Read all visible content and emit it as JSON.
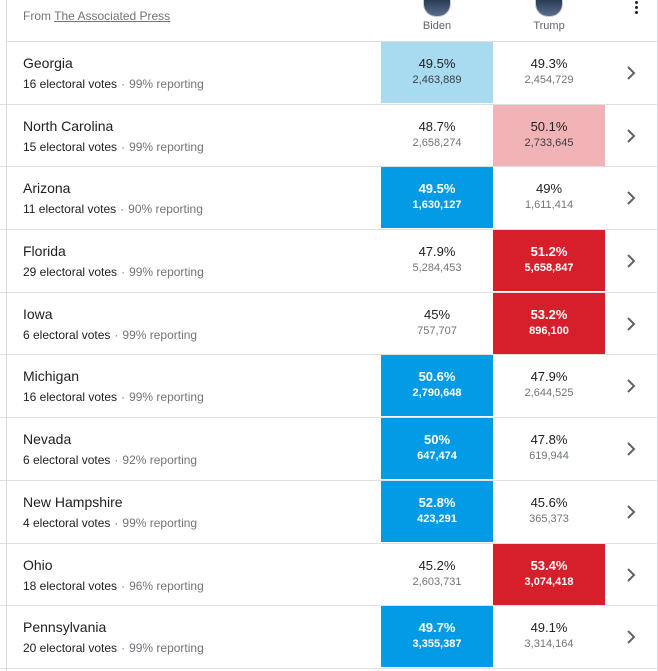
{
  "header": {
    "source_prefix": "From",
    "source_link": "The Associated Press",
    "candidates": [
      {
        "name": "Biden",
        "avatar": "biden-avatar"
      },
      {
        "name": "Trump",
        "avatar": "trump-avatar"
      }
    ],
    "menu_icon": "more-vert-icon"
  },
  "colors": {
    "biden_win": "#039be5",
    "biden_lead": "#a8daf0",
    "trump_win": "#d61f2a",
    "trump_lead": "#f2b3b7"
  },
  "rows": [
    {
      "state": "Georgia",
      "ev": "16 electoral votes",
      "reporting": "99% reporting",
      "biden_pct": "49.5%",
      "biden_votes": "2,463,889",
      "trump_pct": "49.3%",
      "trump_votes": "2,454,729",
      "fill": "biden-lead"
    },
    {
      "state": "North Carolina",
      "ev": "15 electoral votes",
      "reporting": "99% reporting",
      "biden_pct": "48.7%",
      "biden_votes": "2,658,274",
      "trump_pct": "50.1%",
      "trump_votes": "2,733,645",
      "fill": "trump-lead"
    },
    {
      "state": "Arizona",
      "ev": "11 electoral votes",
      "reporting": "90% reporting",
      "biden_pct": "49.5%",
      "biden_votes": "1,630,127",
      "trump_pct": "49%",
      "trump_votes": "1,611,414",
      "fill": "biden-win"
    },
    {
      "state": "Florida",
      "ev": "29 electoral votes",
      "reporting": "99% reporting",
      "biden_pct": "47.9%",
      "biden_votes": "5,284,453",
      "trump_pct": "51.2%",
      "trump_votes": "5,658,847",
      "fill": "trump-win"
    },
    {
      "state": "Iowa",
      "ev": "6 electoral votes",
      "reporting": "99% reporting",
      "biden_pct": "45%",
      "biden_votes": "757,707",
      "trump_pct": "53.2%",
      "trump_votes": "896,100",
      "fill": "trump-win"
    },
    {
      "state": "Michigan",
      "ev": "16 electoral votes",
      "reporting": "99% reporting",
      "biden_pct": "50.6%",
      "biden_votes": "2,790,648",
      "trump_pct": "47.9%",
      "trump_votes": "2,644,525",
      "fill": "biden-win"
    },
    {
      "state": "Nevada",
      "ev": "6 electoral votes",
      "reporting": "92% reporting",
      "biden_pct": "50%",
      "biden_votes": "647,474",
      "trump_pct": "47.8%",
      "trump_votes": "619,944",
      "fill": "biden-win"
    },
    {
      "state": "New Hampshire",
      "ev": "4 electoral votes",
      "reporting": "99% reporting",
      "biden_pct": "52.8%",
      "biden_votes": "423,291",
      "trump_pct": "45.6%",
      "trump_votes": "365,373",
      "fill": "biden-win"
    },
    {
      "state": "Ohio",
      "ev": "18 electoral votes",
      "reporting": "96% reporting",
      "biden_pct": "45.2%",
      "biden_votes": "2,603,731",
      "trump_pct": "53.4%",
      "trump_votes": "3,074,418",
      "fill": "trump-win"
    },
    {
      "state": "Pennsylvania",
      "ev": "20 electoral votes",
      "reporting": "99% reporting",
      "biden_pct": "49.7%",
      "biden_votes": "3,355,387",
      "trump_pct": "49.1%",
      "trump_votes": "3,314,164",
      "fill": "biden-win"
    }
  ]
}
